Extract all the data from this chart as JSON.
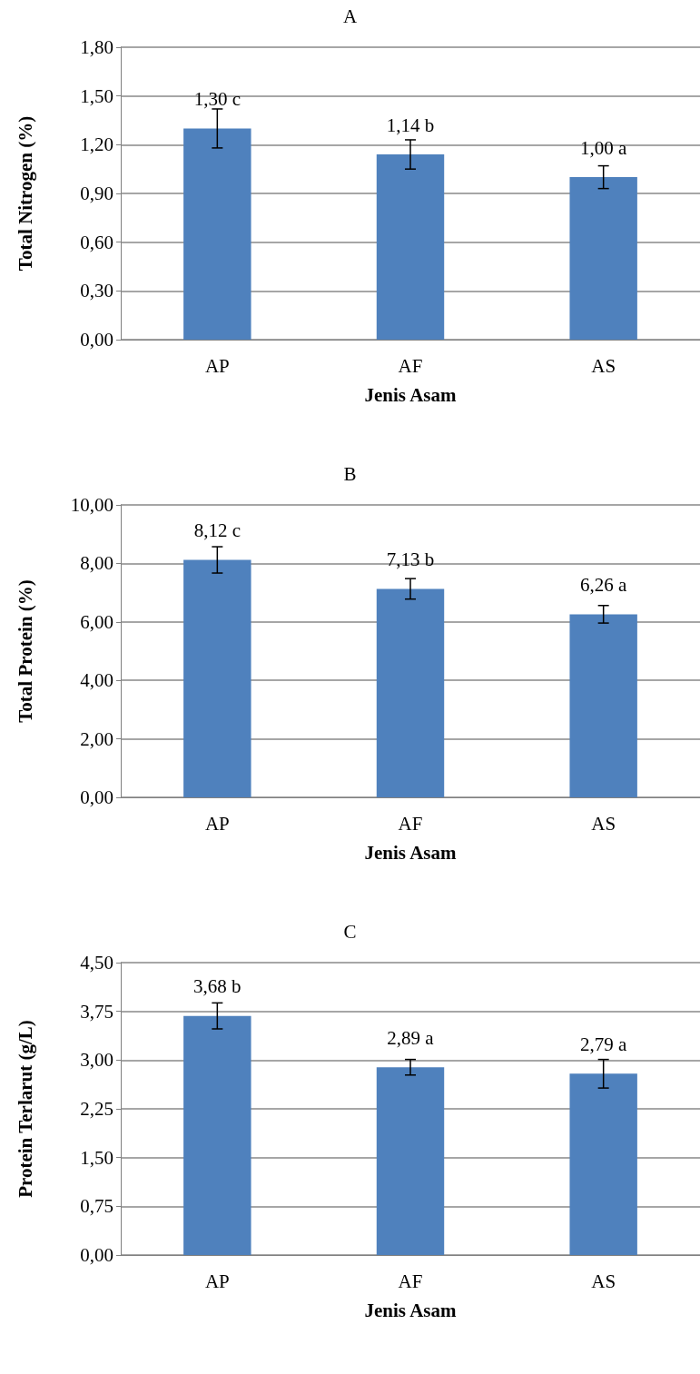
{
  "chart_data": [
    {
      "type": "bar",
      "title": "A",
      "xlabel": "Jenis Asam",
      "ylabel": "Total Nitrogen (%)",
      "categories": [
        "AP",
        "AF",
        "AS"
      ],
      "values": [
        1.3,
        1.14,
        1.0
      ],
      "color": "#4f81bd",
      "errors": [
        0.12,
        0.09,
        0.07
      ],
      "value_labels": [
        "1,30 c",
        "1,14 b",
        "1,00 a"
      ],
      "ylim": [
        0,
        1.8
      ],
      "yticks": [
        {
          "value": 0,
          "label": "0,00"
        },
        {
          "value": 0.3,
          "label": "0,30"
        },
        {
          "value": 0.6,
          "label": "0,60"
        },
        {
          "value": 0.9,
          "label": "0,90"
        },
        {
          "value": 1.2,
          "label": "1,20"
        },
        {
          "value": 1.5,
          "label": "1,50"
        },
        {
          "value": 1.8,
          "label": "1,80"
        }
      ],
      "grid": "y"
    },
    {
      "type": "bar",
      "title": "B",
      "xlabel": "Jenis Asam",
      "ylabel": "Total Protein (%)",
      "categories": [
        "AP",
        "AF",
        "AS"
      ],
      "values": [
        8.12,
        7.13,
        6.26
      ],
      "color": "#4f81bd",
      "errors": [
        0.45,
        0.35,
        0.3
      ],
      "value_labels": [
        "8,12 c",
        "7,13 b",
        "6,26 a"
      ],
      "ylim": [
        0,
        10
      ],
      "yticks": [
        {
          "value": 0,
          "label": "0,00"
        },
        {
          "value": 2,
          "label": "2,00"
        },
        {
          "value": 4,
          "label": "4,00"
        },
        {
          "value": 6,
          "label": "6,00"
        },
        {
          "value": 8,
          "label": "8,00"
        },
        {
          "value": 10,
          "label": "10,00"
        }
      ],
      "grid": "y"
    },
    {
      "type": "bar",
      "title": "C",
      "xlabel": "Jenis Asam",
      "ylabel": "Protein Terlarut (g/L)",
      "categories": [
        "AP",
        "AF",
        "AS"
      ],
      "values": [
        3.68,
        2.89,
        2.79
      ],
      "color": "#4f81bd",
      "errors": [
        0.2,
        0.12,
        0.22
      ],
      "value_labels": [
        "3,68 b",
        "2,89 a",
        "2,79 a"
      ],
      "ylim": [
        0,
        4.5
      ],
      "yticks": [
        {
          "value": 0,
          "label": "0,00"
        },
        {
          "value": 0.75,
          "label": "0,75"
        },
        {
          "value": 1.5,
          "label": "1,50"
        },
        {
          "value": 2.25,
          "label": "2,25"
        },
        {
          "value": 3,
          "label": "3,00"
        },
        {
          "value": 3.75,
          "label": "3,75"
        },
        {
          "value": 4.5,
          "label": "4,50"
        }
      ],
      "grid": "y"
    }
  ]
}
